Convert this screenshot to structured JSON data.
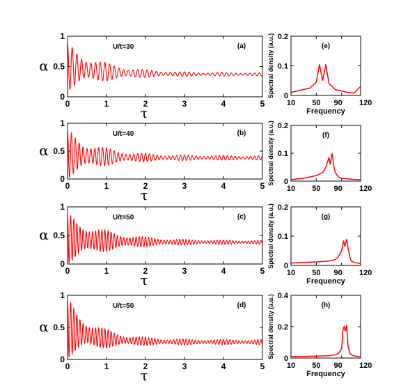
{
  "chart_data": [
    {
      "id": "a",
      "type": "line",
      "panel_label": "(a)",
      "annotation": "U/t=30",
      "xlabel": "τ",
      "ylabel": "α",
      "xlim": [
        0,
        5
      ],
      "ylim": [
        0,
        1
      ],
      "xticks": [
        "0",
        "1",
        "2",
        "3",
        "4",
        "5"
      ],
      "yticks": [
        "0",
        "0.5",
        "1"
      ],
      "color": "#ff0000",
      "series": [
        {
          "x": [
            0,
            0.5,
            1,
            1.5,
            2,
            2.5,
            3,
            3.5,
            4,
            4.5,
            5
          ],
          "y": [
            1.0,
            0.48,
            0.43,
            0.4,
            0.38,
            0.37,
            0.37,
            0.38,
            0.38,
            0.37,
            0.37
          ]
        }
      ],
      "envelope": {
        "mean_start": 0.5,
        "mean_end": 0.37,
        "amp_start": 0.4,
        "amp_end": 0.025,
        "decay": 0.9,
        "period": 0.12
      }
    },
    {
      "id": "b",
      "type": "line",
      "panel_label": "(b)",
      "annotation": "U/t=40",
      "xlabel": "τ",
      "ylabel": "α",
      "xlim": [
        0,
        5
      ],
      "ylim": [
        0,
        1
      ],
      "xticks": [
        "0",
        "1",
        "2",
        "3",
        "4",
        "5"
      ],
      "yticks": [
        "0",
        "0.5",
        "1"
      ],
      "color": "#ff0000",
      "series": [
        {
          "x": [
            0,
            0.5,
            1,
            1.5,
            2,
            2.5,
            3,
            3.5,
            4,
            4.5,
            5
          ],
          "y": [
            0.9,
            0.45,
            0.42,
            0.38,
            0.37,
            0.39,
            0.4,
            0.39,
            0.38,
            0.38,
            0.37
          ]
        }
      ],
      "envelope": {
        "mean_start": 0.45,
        "mean_end": 0.38,
        "amp_start": 0.45,
        "amp_end": 0.04,
        "decay": 0.8,
        "period": 0.1
      }
    },
    {
      "id": "c",
      "type": "line",
      "panel_label": "(c)",
      "annotation": "U/t=50",
      "xlabel": "τ",
      "ylabel": "α",
      "xlim": [
        0,
        5
      ],
      "ylim": [
        0,
        1
      ],
      "xticks": [
        "0",
        "1",
        "2",
        "3",
        "4",
        "5"
      ],
      "yticks": [
        "0",
        "0.5",
        "1"
      ],
      "color": "#ff0000",
      "series": [
        {
          "x": [
            0,
            0.5,
            1,
            1.5,
            2,
            2.5,
            3,
            3.5,
            4,
            4.5,
            5
          ],
          "y": [
            0.95,
            0.45,
            0.38,
            0.4,
            0.39,
            0.38,
            0.39,
            0.38,
            0.39,
            0.38,
            0.38
          ]
        }
      ],
      "envelope": {
        "mean_start": 0.45,
        "mean_end": 0.38,
        "amp_start": 0.45,
        "amp_end": 0.03,
        "decay": 1.0,
        "period": 0.08
      }
    },
    {
      "id": "d",
      "type": "line",
      "panel_label": "(d)",
      "annotation": "U/t=50",
      "xlabel": "τ",
      "ylabel": "α",
      "xlim": [
        0,
        5
      ],
      "ylim": [
        0,
        1
      ],
      "xticks": [
        "0",
        "1",
        "2",
        "3",
        "4",
        "5"
      ],
      "yticks": [
        "0",
        "0.5",
        "1"
      ],
      "color": "#ff0000",
      "series": [
        {
          "x": [
            0,
            0.5,
            1,
            1.5,
            2,
            2.5,
            3,
            3.5,
            4,
            4.5,
            5
          ],
          "y": [
            0.95,
            0.55,
            0.45,
            0.3,
            0.28,
            0.28,
            0.27,
            0.28,
            0.27,
            0.27,
            0.27
          ]
        }
      ],
      "envelope": {
        "mean_start": 0.5,
        "mean_end": 0.27,
        "amp_start": 0.48,
        "amp_end": 0.04,
        "decay": 0.7,
        "period": 0.08
      }
    },
    {
      "id": "e",
      "type": "line",
      "panel_label": "(e)",
      "xlabel": "Frequency",
      "ylabel": "Spectral density (a.u.)",
      "xlim": [
        10,
        120
      ],
      "ylim": [
        0,
        0.2
      ],
      "xticks": [
        "10",
        "50",
        "90",
        "120"
      ],
      "yticks": [
        "0",
        "0.1",
        "0.2"
      ],
      "color": "#ff0000",
      "series": [
        {
          "x": [
            10,
            20,
            30,
            40,
            50,
            55,
            60,
            65,
            70,
            80,
            90,
            100,
            110,
            115,
            120
          ],
          "y": [
            0.01,
            0.015,
            0.02,
            0.025,
            0.045,
            0.105,
            0.05,
            0.105,
            0.04,
            0.02,
            0.015,
            0.01,
            0.008,
            0.02,
            0.03
          ]
        }
      ]
    },
    {
      "id": "f",
      "type": "line",
      "panel_label": "(f)",
      "xlabel": "",
      "ylabel": "Spectral density (a.u.)",
      "xlim": [
        10,
        120
      ],
      "ylim": [
        0,
        0.2
      ],
      "xticks": [
        "10",
        "50",
        "90",
        "120"
      ],
      "yticks": [
        "0",
        "0.1",
        "0.2"
      ],
      "color": "#ff0000",
      "series": [
        {
          "x": [
            10,
            20,
            30,
            40,
            50,
            60,
            65,
            70,
            72,
            75,
            78,
            80,
            85,
            90,
            100,
            110,
            120
          ],
          "y": [
            0.005,
            0.008,
            0.01,
            0.015,
            0.02,
            0.03,
            0.05,
            0.085,
            0.06,
            0.1,
            0.05,
            0.03,
            0.015,
            0.01,
            0.008,
            0.006,
            0.005
          ]
        }
      ]
    },
    {
      "id": "g",
      "type": "line",
      "panel_label": "(g)",
      "xlabel": "Frequency",
      "ylabel": "Spectral density (a.u.)",
      "xlim": [
        10,
        120
      ],
      "ylim": [
        0,
        0.2
      ],
      "xticks": [
        "10",
        "50",
        "90",
        "120"
      ],
      "yticks": [
        "0",
        "0.1",
        "0.2"
      ],
      "color": "#ff0000",
      "series": [
        {
          "x": [
            10,
            30,
            50,
            70,
            80,
            85,
            90,
            93,
            95,
            98,
            100,
            103,
            105,
            110,
            115,
            120
          ],
          "y": [
            0.008,
            0.01,
            0.012,
            0.015,
            0.02,
            0.03,
            0.05,
            0.085,
            0.065,
            0.09,
            0.06,
            0.03,
            0.015,
            0.01,
            0.008,
            0.006
          ]
        }
      ]
    },
    {
      "id": "h",
      "type": "line",
      "panel_label": "(h)",
      "xlabel": "Frequency",
      "ylabel": "Spectral density (a.u.)",
      "xlim": [
        10,
        120
      ],
      "ylim": [
        0,
        0.4
      ],
      "xticks": [
        "10",
        "50",
        "90",
        "120"
      ],
      "yticks": [
        "0",
        "0.2",
        "0.4"
      ],
      "color": "#ff0000",
      "series": [
        {
          "x": [
            10,
            30,
            50,
            70,
            80,
            85,
            90,
            92,
            94,
            96,
            98,
            100,
            103,
            108,
            115,
            120
          ],
          "y": [
            0.01,
            0.01,
            0.012,
            0.015,
            0.02,
            0.03,
            0.06,
            0.18,
            0.2,
            0.17,
            0.21,
            0.08,
            0.03,
            0.015,
            0.01,
            0.008
          ]
        }
      ]
    }
  ]
}
